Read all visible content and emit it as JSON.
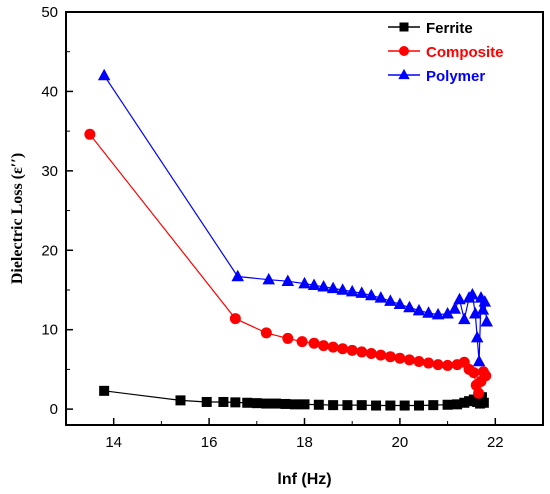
{
  "chart_data": {
    "type": "line",
    "xlabel": "lnf (Hz)",
    "ylabel": "Dielectric Loss (ε′′)",
    "xlim": [
      13,
      23
    ],
    "ylim": [
      -2,
      50
    ],
    "xticks": [
      14,
      16,
      18,
      20,
      22
    ],
    "yticks": [
      0,
      10,
      20,
      30,
      40,
      50
    ],
    "grid": false,
    "legend": "top-right",
    "series": [
      {
        "name": "Ferrite",
        "marker": "square",
        "color": "#000000",
        "x": [
          13.8,
          15.4,
          15.95,
          16.3,
          16.55,
          16.8,
          17.0,
          17.2,
          17.4,
          17.6,
          17.8,
          18.0,
          18.3,
          18.6,
          18.9,
          19.2,
          19.5,
          19.8,
          20.1,
          20.4,
          20.7,
          21.0,
          21.2,
          21.35,
          21.45,
          21.55,
          21.62,
          21.68,
          21.72,
          21.76
        ],
        "y": [
          2.3,
          1.1,
          0.9,
          0.9,
          0.85,
          0.8,
          0.75,
          0.7,
          0.7,
          0.65,
          0.6,
          0.6,
          0.55,
          0.5,
          0.5,
          0.5,
          0.45,
          0.45,
          0.45,
          0.45,
          0.5,
          0.55,
          0.6,
          0.8,
          1.0,
          1.2,
          0.9,
          0.7,
          1.5,
          0.8
        ]
      },
      {
        "name": "Composite",
        "marker": "circle",
        "color": "#ff0000",
        "x": [
          13.5,
          16.55,
          17.2,
          17.65,
          17.95,
          18.2,
          18.4,
          18.6,
          18.8,
          19.0,
          19.2,
          19.4,
          19.6,
          19.8,
          20.0,
          20.2,
          20.4,
          20.6,
          20.8,
          21.0,
          21.2,
          21.35,
          21.45,
          21.55,
          21.6,
          21.65,
          21.7,
          21.75,
          21.8
        ],
        "y": [
          34.6,
          11.4,
          9.6,
          8.9,
          8.5,
          8.3,
          8.0,
          7.8,
          7.6,
          7.4,
          7.2,
          7.0,
          6.8,
          6.6,
          6.4,
          6.2,
          6.0,
          5.8,
          5.6,
          5.5,
          5.6,
          5.9,
          5.0,
          4.6,
          3.0,
          2.0,
          3.5,
          4.7,
          4.2
        ]
      },
      {
        "name": "Polymer",
        "marker": "triangle",
        "color": "#0000ff",
        "x": [
          13.8,
          16.6,
          17.25,
          17.65,
          18.0,
          18.2,
          18.4,
          18.6,
          18.8,
          19.0,
          19.2,
          19.4,
          19.6,
          19.8,
          20.0,
          20.2,
          20.4,
          20.6,
          20.8,
          21.0,
          21.15,
          21.25,
          21.35,
          21.45,
          21.52,
          21.58,
          21.62,
          21.66,
          21.7,
          21.74,
          21.78,
          21.82
        ],
        "y": [
          42.0,
          16.7,
          16.3,
          16.1,
          15.8,
          15.6,
          15.4,
          15.2,
          15.0,
          14.8,
          14.6,
          14.3,
          14.0,
          13.6,
          13.2,
          12.8,
          12.4,
          12.1,
          11.9,
          12.0,
          12.6,
          13.8,
          11.3,
          14.0,
          14.4,
          12.0,
          9.0,
          6.0,
          14.0,
          12.5,
          13.5,
          11.0
        ]
      }
    ]
  }
}
